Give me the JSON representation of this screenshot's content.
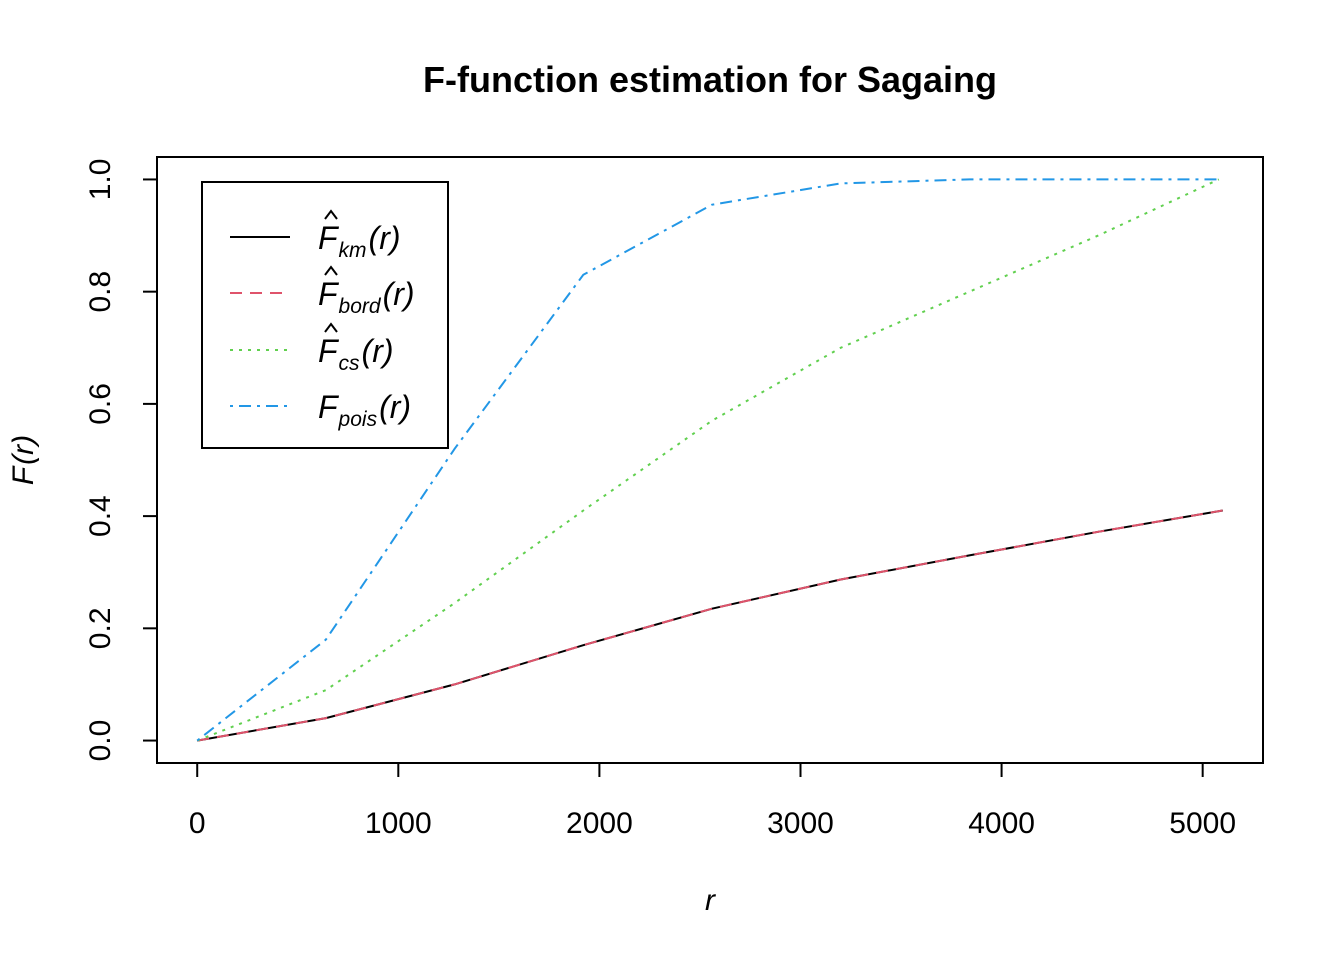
{
  "chart_data": {
    "type": "line",
    "title": "F-function estimation for Sagaing",
    "xlabel": "r",
    "ylabel": "F(r)",
    "xlim": [
      -200,
      5300
    ],
    "ylim": [
      -0.04,
      1.04
    ],
    "x_ticks": [
      0,
      1000,
      2000,
      3000,
      4000,
      5000
    ],
    "x_tick_labels": [
      "0",
      "1000",
      "2000",
      "3000",
      "4000",
      "5000"
    ],
    "y_ticks": [
      0.0,
      0.2,
      0.4,
      0.6,
      0.8,
      1.0
    ],
    "y_tick_labels": [
      "0.0",
      "0.2",
      "0.4",
      "0.6",
      "0.8",
      "1.0"
    ],
    "grid": false,
    "legend_position": "top-left",
    "series": [
      {
        "name": "F̂_km(r)",
        "color": "#000000",
        "dash": "solid",
        "x": [
          0,
          640,
          1280,
          1920,
          2560,
          3200,
          3840,
          4480,
          5100
        ],
        "y": [
          0.0,
          0.04,
          0.1,
          0.17,
          0.235,
          0.287,
          0.33,
          0.372,
          0.41
        ]
      },
      {
        "name": "F̂_bord(r)",
        "color": "#df536b",
        "dash": "dashed",
        "x": [
          0,
          640,
          1280,
          1920,
          2560,
          3200,
          3840,
          4480,
          5100
        ],
        "y": [
          0.0,
          0.04,
          0.1,
          0.17,
          0.235,
          0.287,
          0.33,
          0.372,
          0.41
        ]
      },
      {
        "name": "F̂_cs(r)",
        "color": "#61d04f",
        "dash": "dotted",
        "x": [
          0,
          640,
          1280,
          1920,
          2560,
          3200,
          3840,
          4480,
          5080
        ],
        "y": [
          0.0,
          0.09,
          0.245,
          0.41,
          0.57,
          0.7,
          0.8,
          0.9,
          1.0
        ]
      },
      {
        "name": "F_pois(r)",
        "color": "#2297e6",
        "dash": "dotdash",
        "x": [
          0,
          640,
          1280,
          1920,
          2560,
          3200,
          3840,
          4480,
          5080
        ],
        "y": [
          0.0,
          0.18,
          0.52,
          0.83,
          0.955,
          0.993,
          1.0,
          1.0,
          1.0
        ]
      }
    ],
    "legend": [
      {
        "base": "F",
        "hat": true,
        "sub": "km",
        "arg": "(r)"
      },
      {
        "base": "F",
        "hat": true,
        "sub": "bord",
        "arg": "(r)"
      },
      {
        "base": "F",
        "hat": true,
        "sub": "cs",
        "arg": "(r)"
      },
      {
        "base": "F",
        "hat": false,
        "sub": "pois",
        "arg": "(r)"
      }
    ],
    "ylabel_parts": {
      "base": "F",
      "arg": "(r)"
    }
  }
}
